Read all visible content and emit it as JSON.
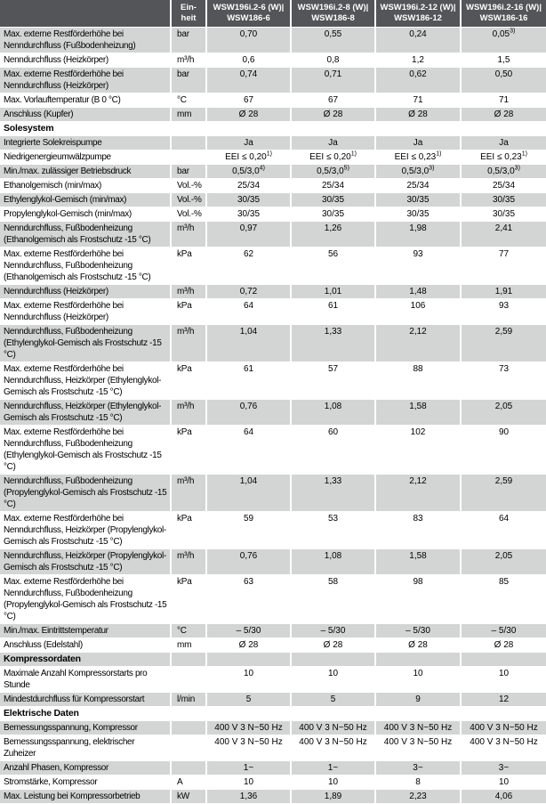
{
  "header": {
    "unit": {
      "line1": "Ein-",
      "line2": "heit"
    },
    "models": [
      {
        "line1": "WSW196i.2-6 (W)|",
        "line2": "WSW186-6"
      },
      {
        "line1": "WSW196i.2-8 (W)|",
        "line2": "WSW186-8"
      },
      {
        "line1": "WSW196i.2-12 (W)|",
        "line2": "WSW186-12"
      },
      {
        "line1": "WSW196i.2-16 (W)|",
        "line2": "WSW186-16"
      }
    ]
  },
  "colors": {
    "header_bg": "#545558",
    "header_text": "#ffffff",
    "stripe_gray": "#d3d4d4",
    "stripe_white": "#ffffff"
  },
  "rows": [
    {
      "type": "data",
      "label": "Max. externe Restförderhöhe bei Nenndurchfluss (Fußbodenheizung)",
      "unit": "bar",
      "values": [
        "0,70",
        "0,55",
        "0,24",
        {
          "t": "0,05",
          "sup": "3)"
        }
      ]
    },
    {
      "type": "data",
      "label": "Nenndurchfluss (Heizkörper)",
      "unit": "m³/h",
      "values": [
        "0,6",
        "0,8",
        "1,2",
        "1,5"
      ]
    },
    {
      "type": "data",
      "label": "Max. externe Restförderhöhe bei Nenndurchfluss (Heizkörper)",
      "unit": "bar",
      "values": [
        "0,74",
        "0,71",
        "0,62",
        "0,50"
      ]
    },
    {
      "type": "data",
      "label": "Max. Vorlauftemperatur (B 0 °C)",
      "unit": "°C",
      "values": [
        "67",
        "67",
        "71",
        "71"
      ]
    },
    {
      "type": "data",
      "label": "Anschluss (Kupfer)",
      "unit": "mm",
      "values": [
        "Ø 28",
        "Ø 28",
        "Ø 28",
        "Ø 28"
      ]
    },
    {
      "type": "section",
      "label": "Solesystem"
    },
    {
      "type": "data",
      "label": "Integrierte Solekreispumpe",
      "unit": "",
      "values": [
        "Ja",
        "Ja",
        "Ja",
        "Ja"
      ]
    },
    {
      "type": "data",
      "label": "Niedrigenergieumwälzpumpe",
      "unit": "",
      "values": [
        {
          "t": "EEI ≤ 0,20",
          "sup": "1)"
        },
        {
          "t": "EEI ≤ 0,20",
          "sup": "1)"
        },
        {
          "t": "EEI ≤ 0,23",
          "sup": "1)"
        },
        {
          "t": "EEI ≤ 0,23",
          "sup": "1)"
        }
      ]
    },
    {
      "type": "data",
      "label": "Min./max. zulässiger Betriebsdruck",
      "unit": "bar",
      "values": [
        {
          "t": "0,5/3,0",
          "sup": "4)"
        },
        {
          "t": "0,5/3,0",
          "sup": "5)"
        },
        {
          "t": "0,5/3,0",
          "sup": "3)"
        },
        {
          "t": "0,5/3,0",
          "sup": "3)"
        }
      ]
    },
    {
      "type": "data",
      "label": "Ethanolgemisch (min/max)",
      "unit": "Vol.-%",
      "values": [
        "25/34",
        "25/34",
        "25/34",
        "25/34"
      ]
    },
    {
      "type": "data",
      "label": "Ethylenglykol-Gemisch (min/max)",
      "unit": "Vol.-%",
      "values": [
        "30/35",
        "30/35",
        "30/35",
        "30/35"
      ]
    },
    {
      "type": "data",
      "label": "Propylenglykol-Gemisch (min/max)",
      "unit": "Vol.-%",
      "values": [
        "30/35",
        "30/35",
        "30/35",
        "30/35"
      ]
    },
    {
      "type": "data",
      "label": "Nenndurchfluss, Fußbodenheizung (Ethanolgemisch als Frostschutz -15 °C)",
      "unit": "m³/h",
      "values": [
        "0,97",
        "1,26",
        "1,98",
        "2,41"
      ]
    },
    {
      "type": "data",
      "label": "Max. externe Restförderhöhe bei Nenndurchfluss, Fußbodenheizung (Ethanolgemisch als Frostschutz -15 °C)",
      "unit": "kPa",
      "values": [
        "62",
        "56",
        "93",
        "77"
      ]
    },
    {
      "type": "data",
      "label": "Nenndurchfluss (Heizkörper)",
      "unit": "m³/h",
      "values": [
        "0,72",
        "1,01",
        "1,48",
        "1,91"
      ]
    },
    {
      "type": "data",
      "label": "Max. externe Restförderhöhe bei Nenndurchfluss (Heizkörper)",
      "unit": "kPa",
      "values": [
        "64",
        "61",
        "106",
        "93"
      ]
    },
    {
      "type": "data",
      "label": "Nenndurchfluss, Fußbodenheizung (Ethylenglykol-Gemisch als Frostschutz -15 °C)",
      "unit": "m³/h",
      "values": [
        "1,04",
        "1,33",
        "2,12",
        "2,59"
      ]
    },
    {
      "type": "data",
      "label": "Max. externe Restförderhöhe bei Nenndurchfluss, Heizkörper (Ethylenglykol-Gemisch als Frostschutz -15 °C)",
      "unit": "kPa",
      "values": [
        "61",
        "57",
        "88",
        "73"
      ]
    },
    {
      "type": "data",
      "label": "Nenndurchfluss, Heizkörper (Ethylenglykol-Gemisch als Frostschutz -15 °C)",
      "unit": "m³/h",
      "values": [
        "0,76",
        "1,08",
        "1,58",
        "2,05"
      ]
    },
    {
      "type": "data",
      "label": "Max. externe Restförderhöhe bei Nenndurchfluss, Fußbodenheizung (Ethylenglykol-Gemisch als Frostschutz -15 °C)",
      "unit": "kPa",
      "values": [
        "64",
        "60",
        "102",
        "90"
      ]
    },
    {
      "type": "data",
      "label": "Nenndurchfluss, Fußbodenheizung (Propylenglykol-Gemisch als Frostschutz -15 °C)",
      "unit": "m³/h",
      "values": [
        "1,04",
        "1,33",
        "2,12",
        "2,59"
      ]
    },
    {
      "type": "data",
      "label": "Max. externe Restförderhöhe bei Nenndurchfluss, Heizkörper (Propylenglykol-Gemisch als Frostschutz -15 °C)",
      "unit": "kPa",
      "values": [
        "59",
        "53",
        "83",
        "64"
      ]
    },
    {
      "type": "data",
      "label": "Nenndurchfluss, Heizkörper (Propylenglykol-Gemisch als Frostschutz -15 °C)",
      "unit": "m³/h",
      "values": [
        "0,76",
        "1,08",
        "1,58",
        "2,05"
      ]
    },
    {
      "type": "data",
      "label": "Max. externe Restförderhöhe bei Nenndurchfluss, Fußbodenheizung (Propylenglykol-Gemisch als Frostschutz -15 °C)",
      "unit": "kPa",
      "values": [
        "63",
        "58",
        "98",
        "85"
      ]
    },
    {
      "type": "data",
      "label": "Min./max. Eintrittstemperatur",
      "unit": "°C",
      "values": [
        "– 5/30",
        "– 5/30",
        "– 5/30",
        "– 5/30"
      ]
    },
    {
      "type": "data",
      "label": "Anschluss (Edelstahl)",
      "unit": "mm",
      "values": [
        "Ø 28",
        "Ø 28",
        "Ø 28",
        "Ø 28"
      ]
    },
    {
      "type": "section",
      "label": "Kompressordaten"
    },
    {
      "type": "data",
      "label": "Maximale Anzahl Kompressorstarts pro Stunde",
      "unit": "",
      "values": [
        "10",
        "10",
        "10",
        "10"
      ]
    },
    {
      "type": "data",
      "label": "Mindestdurchfluss für Kompressorstart",
      "unit": "l/min",
      "values": [
        "5",
        "5",
        "9",
        "12"
      ]
    },
    {
      "type": "section",
      "label": "Elektrische Daten"
    },
    {
      "type": "data",
      "label": "Bemessungsspannung, Kompressor",
      "unit": "",
      "values": [
        "400 V 3 N~50 Hz",
        "400 V 3 N~50 Hz",
        "400 V 3 N~50 Hz",
        "400 V 3 N~50 Hz"
      ]
    },
    {
      "type": "data",
      "label": "Bemessungsspannung, elektrischer Zuheizer",
      "unit": "",
      "values": [
        "400 V 3 N~50 Hz",
        "400 V 3 N~50 Hz",
        "400 V 3 N~50 Hz",
        "400 V 3 N~50 Hz"
      ]
    },
    {
      "type": "data",
      "label": "Anzahl Phasen, Kompressor",
      "unit": "",
      "values": [
        "1~",
        "1~",
        "3~",
        "3~"
      ]
    },
    {
      "type": "data",
      "label": "Stromstärke, Kompressor",
      "unit": "A",
      "values": [
        "10",
        "10",
        "8",
        "10"
      ]
    },
    {
      "type": "data",
      "label": "Max. Leistung bei Kompressorbetrieb",
      "unit": "kW",
      "values": [
        "1,36",
        "1,89",
        "2,23",
        "4,06"
      ]
    }
  ]
}
